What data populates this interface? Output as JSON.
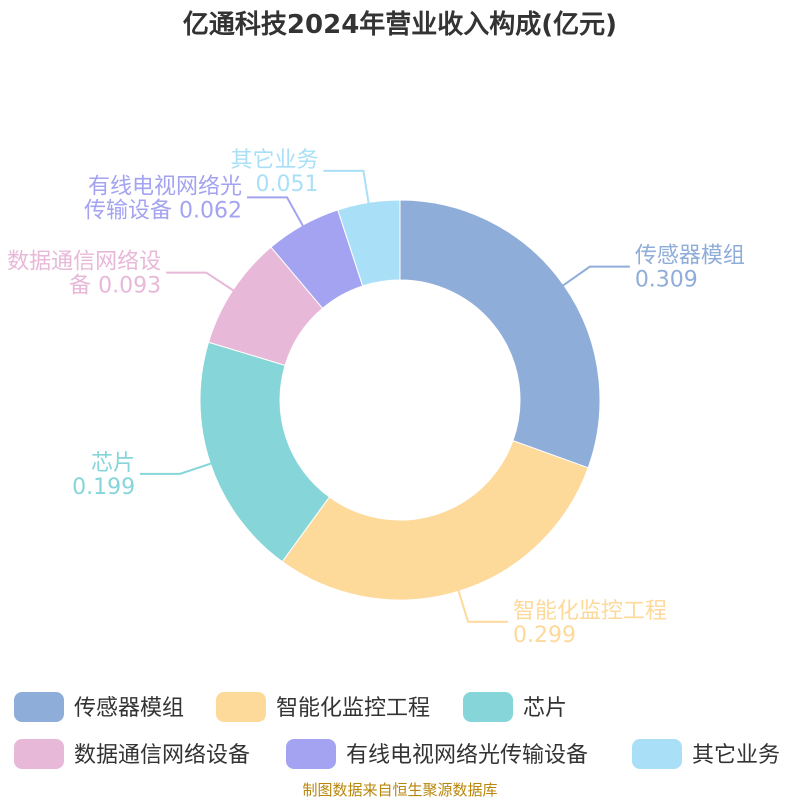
{
  "chart_data": {
    "type": "pie",
    "title": "亿通科技2024年营业收入构成(亿元)",
    "slices": [
      {
        "name": "传感器模组",
        "value": 0.309,
        "value_label": "0.309",
        "color": "#8fadd9",
        "label_lines": [
          "传感器模组",
          "0.309"
        ]
      },
      {
        "name": "智能化监控工程",
        "value": 0.299,
        "value_label": "0.299",
        "color": "#fdd99a",
        "label_lines": [
          "智能化监控工程",
          "0.299"
        ]
      },
      {
        "name": "芯片",
        "value": 0.199,
        "value_label": "0.199",
        "color": "#86d5d8",
        "label_lines": [
          "芯片",
          "0.199"
        ]
      },
      {
        "name": "数据通信网络设备",
        "value": 0.093,
        "value_label": "0.093",
        "color": "#e8b8d8",
        "label_lines": [
          "数据通信网络设",
          "备 0.093"
        ]
      },
      {
        "name": "有线电视网络光传输设备",
        "value": 0.062,
        "value_label": "0.062",
        "color": "#a3a3f2",
        "label_lines": [
          "有线电视网络光",
          "传输设备 0.062"
        ]
      },
      {
        "name": "其它业务",
        "value": 0.051,
        "value_label": "0.051",
        "color": "#aae0f7",
        "label_lines": [
          "其它业务",
          "0.051"
        ]
      }
    ],
    "legend_position": "bottom"
  },
  "source": "制图数据来自恒生聚源数据库"
}
